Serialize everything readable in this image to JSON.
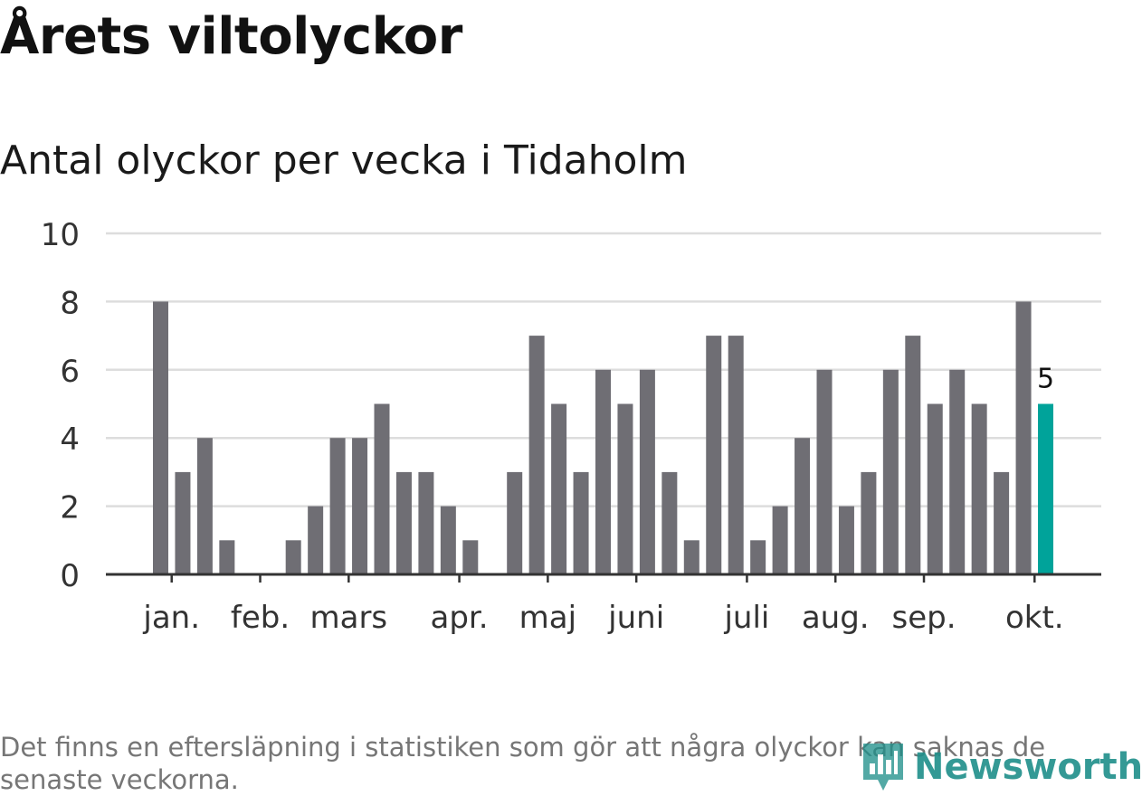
{
  "title": "Årets viltolyckor",
  "subtitle": "Antal olyckor per vecka i Tidaholm",
  "footnote": "Det finns en eftersläpning i statistiken som gör att några olyckor kan saknas de senaste veckorna.",
  "logo": {
    "text": "Newsworthy",
    "icon": "bar-chart-pin-icon"
  },
  "colors": {
    "bar": "#6f6e74",
    "highlight": "#00a39a",
    "grid": "#dddddd",
    "axis": "#333333",
    "brand": "#1f8f8a"
  },
  "chart_data": {
    "type": "bar",
    "title": "Antal olyckor per vecka i Tidaholm",
    "xlabel": "",
    "ylabel": "",
    "ylim": [
      0,
      10
    ],
    "yticks": [
      0,
      2,
      4,
      6,
      8,
      10
    ],
    "grid": true,
    "values": [
      8,
      3,
      4,
      1,
      0,
      0,
      1,
      2,
      4,
      4,
      5,
      3,
      3,
      2,
      1,
      0,
      3,
      7,
      5,
      3,
      6,
      5,
      6,
      3,
      1,
      7,
      7,
      1,
      2,
      4,
      6,
      2,
      3,
      6,
      7,
      5,
      6,
      5,
      3,
      8,
      5
    ],
    "highlight_index": 40,
    "highlight_label": "5",
    "month_ticks": [
      {
        "label": "jan.",
        "week_index": 0.5
      },
      {
        "label": "feb.",
        "week_index": 4.5
      },
      {
        "label": "mars",
        "week_index": 8.5
      },
      {
        "label": "apr.",
        "week_index": 13.5
      },
      {
        "label": "maj",
        "week_index": 17.5
      },
      {
        "label": "juni",
        "week_index": 21.5
      },
      {
        "label": "juli",
        "week_index": 26.5
      },
      {
        "label": "aug.",
        "week_index": 30.5
      },
      {
        "label": "sep.",
        "week_index": 34.5
      },
      {
        "label": "okt.",
        "week_index": 39.5
      }
    ]
  }
}
